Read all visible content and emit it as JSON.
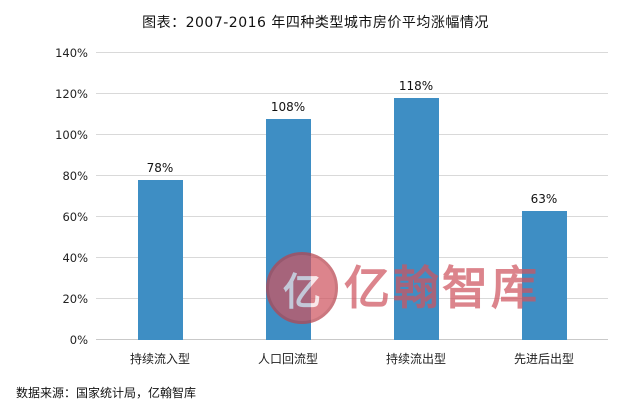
{
  "title": "图表：2007-2016 年四种类型城市房价平均涨幅情况",
  "source": "数据来源：国家统计局，亿翰智库",
  "watermark": {
    "text": "亿翰智库",
    "logo_char": "亿",
    "color": "#cf5560"
  },
  "chart_data": {
    "type": "bar",
    "title": "图表：2007-2016 年四种类型城市房价平均涨幅情况",
    "categories": [
      "持续流入型",
      "人口回流型",
      "持续流出型",
      "先进后出型"
    ],
    "values": [
      78,
      108,
      118,
      63
    ],
    "value_labels": [
      "78%",
      "108%",
      "118%",
      "63%"
    ],
    "xlabel": "",
    "ylabel": "",
    "ylim": [
      0,
      140
    ],
    "ytick_step": 20,
    "ytick_labels": [
      "0%",
      "20%",
      "40%",
      "60%",
      "80%",
      "100%",
      "120%",
      "140%"
    ],
    "bar_color": "#3e8ec4",
    "grid": true,
    "legend_position": "none"
  }
}
